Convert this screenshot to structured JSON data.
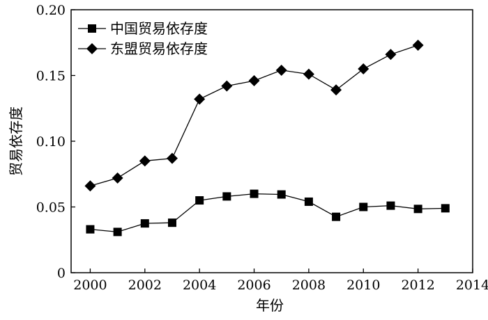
{
  "chart_data": {
    "type": "line",
    "title": "",
    "xlabel": "年份",
    "ylabel": "贸易依存度",
    "xlim": [
      1999.3,
      2014
    ],
    "ylim": [
      0,
      0.2
    ],
    "x_ticks": [
      2000,
      2002,
      2004,
      2006,
      2008,
      2010,
      2012,
      2014
    ],
    "y_ticks": [
      0,
      0.05,
      0.1,
      0.15,
      0.2
    ],
    "y_tick_labels": [
      "0",
      "0.05",
      "0.10",
      "0.15",
      "0.20"
    ],
    "grid": false,
    "legend_position": "top-left",
    "series": [
      {
        "name": "中国贸易依存度",
        "marker": "square",
        "color": "#000000",
        "x": [
          2000,
          2001,
          2002,
          2003,
          2004,
          2005,
          2006,
          2007,
          2008,
          2009,
          2010,
          2011,
          2012,
          2013
        ],
        "y": [
          0.033,
          0.031,
          0.0375,
          0.038,
          0.055,
          0.058,
          0.06,
          0.0595,
          0.054,
          0.0425,
          0.05,
          0.051,
          0.0485,
          0.049
        ]
      },
      {
        "name": "东盟贸易依存度",
        "marker": "diamond",
        "color": "#000000",
        "x": [
          2000,
          2001,
          2002,
          2003,
          2004,
          2005,
          2006,
          2007,
          2008,
          2009,
          2010,
          2011,
          2012
        ],
        "y": [
          0.066,
          0.072,
          0.085,
          0.087,
          0.132,
          0.142,
          0.146,
          0.154,
          0.151,
          0.139,
          0.155,
          0.166,
          0.173
        ]
      }
    ]
  }
}
